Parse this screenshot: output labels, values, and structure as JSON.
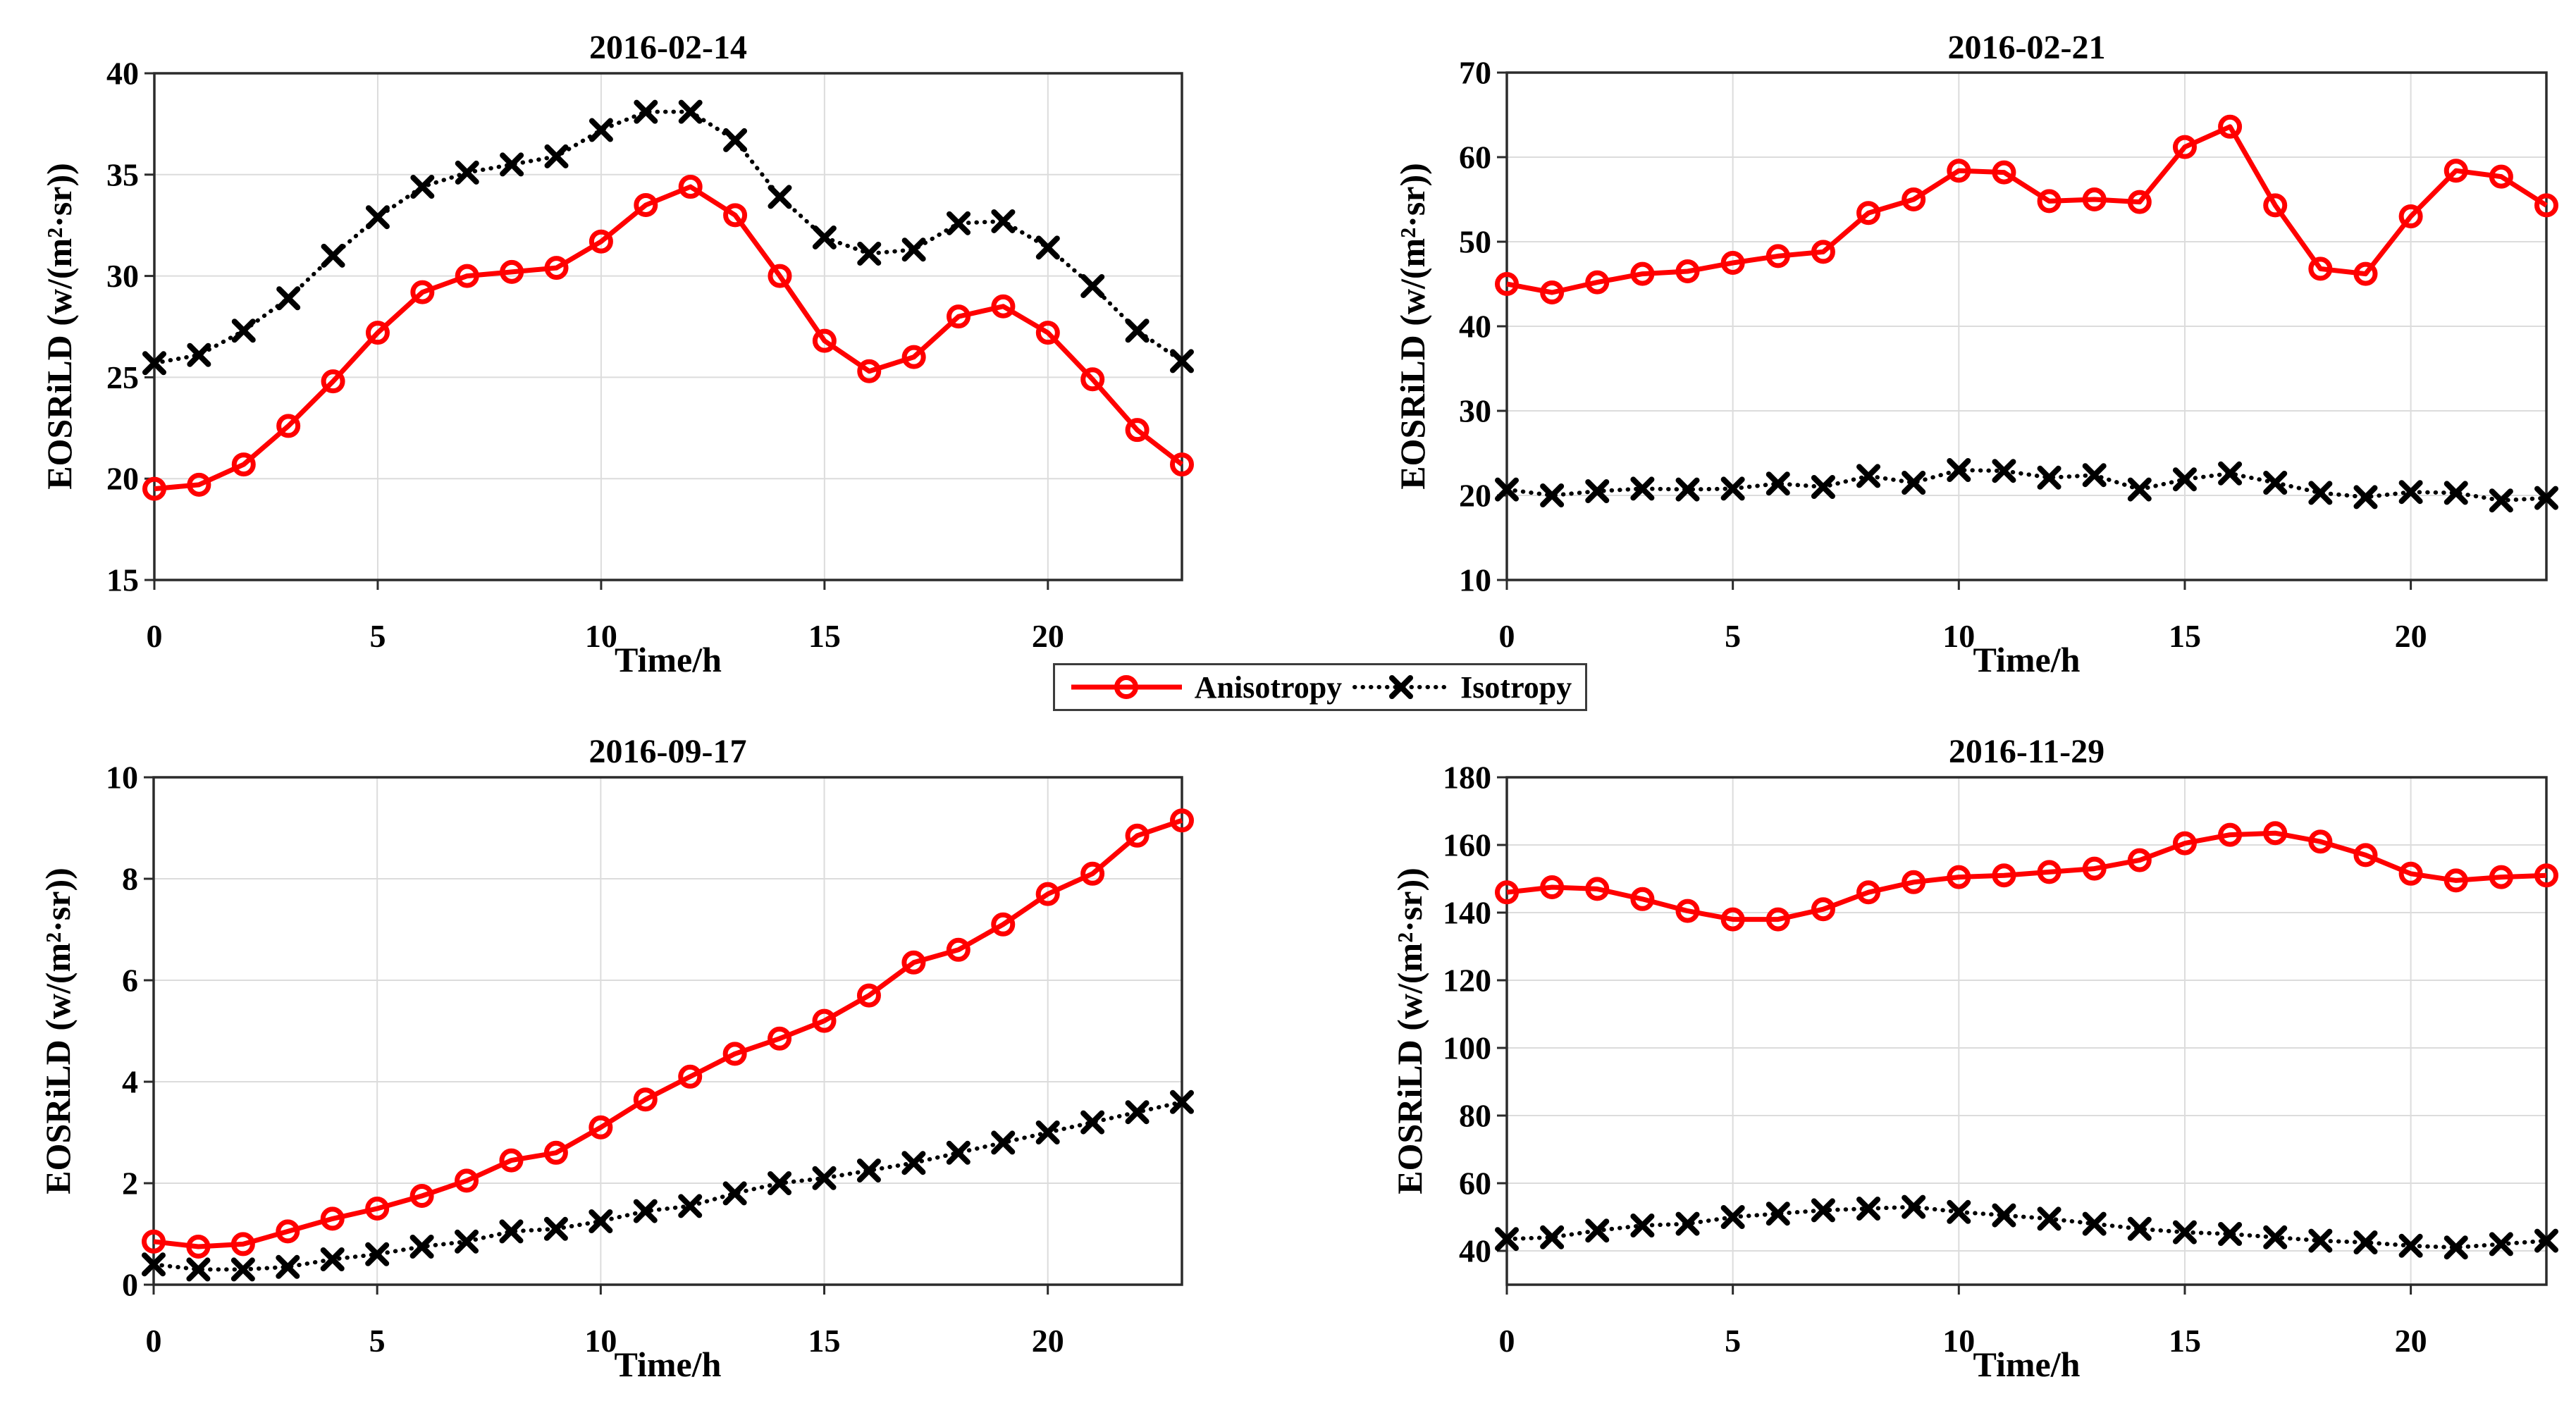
{
  "figure": {
    "background": "#ffffff",
    "description": "2x2 grid of EOSRiLD daily time-series plots comparing Anisotropy and Isotropy"
  },
  "style": {
    "anisotropy_color": "#ff0000",
    "isotropy_color": "#000000",
    "grid_color": "#dcdcdc",
    "axis_color": "#2b2b2b",
    "text_color": "#000000"
  },
  "legend": {
    "items": [
      {
        "label": "Anisotropy",
        "marker": "circle",
        "line": "solid",
        "color": "#ff0000"
      },
      {
        "label": "Isotropy",
        "marker": "x",
        "line": "dotted",
        "color": "#000000"
      }
    ]
  },
  "chart_data": [
    {
      "type": "line",
      "title": "2016-02-14",
      "xlabel": "Time/h",
      "ylabel": "EOSRiLD (w/(m²·sr))",
      "xlim": [
        0,
        23
      ],
      "ylim": [
        15,
        40
      ],
      "xticks": [
        0,
        5,
        10,
        15,
        20
      ],
      "yticks": [
        15,
        20,
        25,
        30,
        35,
        40
      ],
      "grid": true,
      "x": [
        0,
        1,
        2,
        3,
        4,
        5,
        6,
        7,
        8,
        9,
        10,
        11,
        12,
        13,
        14,
        15,
        16,
        17,
        18,
        19,
        20,
        21,
        22,
        23
      ],
      "series": [
        {
          "name": "Anisotropy",
          "values": [
            19.5,
            19.7,
            20.7,
            22.6,
            24.8,
            27.2,
            29.2,
            30.0,
            30.2,
            30.4,
            31.7,
            33.5,
            34.4,
            33.0,
            30.0,
            26.8,
            25.3,
            26.0,
            28.0,
            28.5,
            27.2,
            24.9,
            22.4,
            20.7
          ]
        },
        {
          "name": "Isotropy",
          "values": [
            25.7,
            26.1,
            27.3,
            28.9,
            31.0,
            32.9,
            34.4,
            35.1,
            35.5,
            35.9,
            37.2,
            38.1,
            38.1,
            36.7,
            33.9,
            31.9,
            31.1,
            31.3,
            32.6,
            32.7,
            31.4,
            29.5,
            27.3,
            25.8
          ]
        }
      ]
    },
    {
      "type": "line",
      "title": "2016-02-21",
      "xlabel": "Time/h",
      "ylabel": "EOSRiLD (w/(m²·sr))",
      "xlim": [
        0,
        23
      ],
      "ylim": [
        10,
        70
      ],
      "xticks": [
        0,
        5,
        10,
        15,
        20
      ],
      "yticks": [
        10,
        20,
        30,
        40,
        50,
        60,
        70
      ],
      "grid": true,
      "x": [
        0,
        1,
        2,
        3,
        4,
        5,
        6,
        7,
        8,
        9,
        10,
        11,
        12,
        13,
        14,
        15,
        16,
        17,
        18,
        19,
        20,
        21,
        22,
        23
      ],
      "series": [
        {
          "name": "Anisotropy",
          "values": [
            45.0,
            44.0,
            45.2,
            46.2,
            46.5,
            47.5,
            48.3,
            48.8,
            53.4,
            55.0,
            58.4,
            58.2,
            54.8,
            55.0,
            54.7,
            61.2,
            63.6,
            54.3,
            46.8,
            46.2,
            53.0,
            58.4,
            57.7,
            54.3
          ]
        },
        {
          "name": "Isotropy",
          "values": [
            20.7,
            20.0,
            20.5,
            20.8,
            20.7,
            20.8,
            21.4,
            21.0,
            22.3,
            21.5,
            23.0,
            22.9,
            22.1,
            22.4,
            20.7,
            21.9,
            22.6,
            21.5,
            20.3,
            19.8,
            20.4,
            20.3,
            19.4,
            19.7
          ]
        }
      ]
    },
    {
      "type": "line",
      "title": "2016-09-17",
      "xlabel": "Time/h",
      "ylabel": "EOSRiLD (w/(m²·sr))",
      "xlim": [
        0,
        23
      ],
      "ylim": [
        0,
        10
      ],
      "xticks": [
        0,
        5,
        10,
        15,
        20
      ],
      "yticks": [
        0,
        2,
        4,
        6,
        8,
        10
      ],
      "grid": true,
      "x": [
        0,
        1,
        2,
        3,
        4,
        5,
        6,
        7,
        8,
        9,
        10,
        11,
        12,
        13,
        14,
        15,
        16,
        17,
        18,
        19,
        20,
        21,
        22,
        23
      ],
      "series": [
        {
          "name": "Anisotropy",
          "values": [
            0.85,
            0.75,
            0.8,
            1.05,
            1.3,
            1.5,
            1.75,
            2.05,
            2.45,
            2.6,
            3.1,
            3.65,
            4.1,
            4.55,
            4.85,
            5.2,
            5.7,
            6.35,
            6.6,
            7.1,
            7.7,
            8.1,
            8.85,
            9.15
          ]
        },
        {
          "name": "Isotropy",
          "values": [
            0.4,
            0.3,
            0.3,
            0.35,
            0.5,
            0.6,
            0.75,
            0.85,
            1.05,
            1.1,
            1.25,
            1.45,
            1.55,
            1.8,
            2.0,
            2.1,
            2.25,
            2.4,
            2.6,
            2.8,
            3.0,
            3.2,
            3.4,
            3.6
          ]
        }
      ]
    },
    {
      "type": "line",
      "title": "2016-11-29",
      "xlabel": "Time/h",
      "ylabel": "EOSRiLD (w/(m²·sr))",
      "xlim": [
        0,
        23
      ],
      "ylim": [
        30,
        180
      ],
      "xticks": [
        0,
        5,
        10,
        15,
        20
      ],
      "yticks": [
        40,
        60,
        80,
        100,
        120,
        140,
        160,
        180
      ],
      "grid": true,
      "x": [
        0,
        1,
        2,
        3,
        4,
        5,
        6,
        7,
        8,
        9,
        10,
        11,
        12,
        13,
        14,
        15,
        16,
        17,
        18,
        19,
        20,
        21,
        22,
        23
      ],
      "series": [
        {
          "name": "Anisotropy",
          "values": [
            146,
            147.5,
            147,
            144,
            140.5,
            138,
            138,
            141,
            146,
            149,
            150.5,
            151,
            152,
            153,
            155.5,
            160.5,
            163,
            163.5,
            161,
            157,
            151.5,
            149.5,
            150.5,
            151
          ]
        },
        {
          "name": "Isotropy",
          "values": [
            43.5,
            44,
            46,
            47.5,
            48,
            50,
            51,
            52,
            52.5,
            53,
            51.5,
            50.5,
            49.5,
            48,
            46.5,
            45.5,
            45,
            44,
            43,
            42.5,
            41.5,
            41,
            42,
            43
          ]
        }
      ]
    }
  ]
}
